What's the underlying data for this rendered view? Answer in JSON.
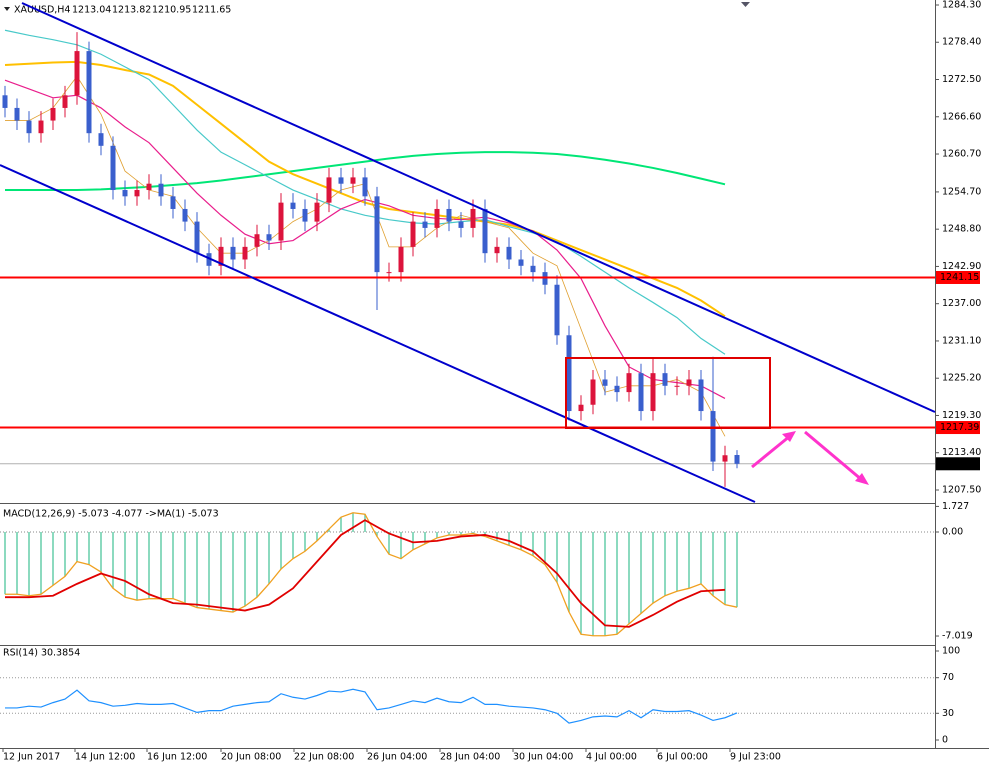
{
  "chart_data": [
    {
      "type": "candlestick",
      "title": "XAUUSD,H4",
      "open": [
        1270,
        1268,
        1266,
        1264,
        1266,
        1268,
        1270,
        1277,
        1264,
        1262,
        1255,
        1254,
        1255,
        1256,
        1254,
        1252,
        1250,
        1245,
        1243,
        1246,
        1244,
        1246,
        1248,
        1247,
        1253,
        1252,
        1250,
        1253,
        1257,
        1256,
        1257,
        1254,
        1242,
        1242,
        1246,
        1250,
        1249,
        1252,
        1250,
        1249,
        1252,
        1245,
        1246,
        1244,
        1243,
        1242,
        1240,
        1232,
        1220,
        1221,
        1225,
        1224,
        1223,
        1226,
        1220,
        1226,
        1224,
        1224,
        1225,
        1220,
        1212,
        1213.04
      ],
      "high": [
        1271.5,
        1269.5,
        1267.5,
        1267.5,
        1269.5,
        1271.5,
        1280,
        1278.5,
        1265.5,
        1263.5,
        1256.5,
        1256.5,
        1257.5,
        1257.5,
        1255.5,
        1253.5,
        1251.5,
        1246.5,
        1247.5,
        1247.5,
        1247.5,
        1249.5,
        1249.5,
        1254.5,
        1254.5,
        1253.5,
        1254.5,
        1258.5,
        1258.5,
        1258.5,
        1258.5,
        1255.5,
        1243.5,
        1247.5,
        1251.5,
        1251.5,
        1253.5,
        1253.5,
        1251.5,
        1253.5,
        1253.5,
        1247.5,
        1247.5,
        1245.5,
        1244.5,
        1243.5,
        1241.5,
        1233.5,
        1222.5,
        1226.5,
        1226.5,
        1225.5,
        1227.5,
        1227.5,
        1228.5,
        1227.5,
        1225.5,
        1226.5,
        1226.5,
        1228.6,
        1214.5,
        1213.82
      ],
      "low": [
        1266.5,
        1264.5,
        1262.5,
        1262.5,
        1264.5,
        1266.5,
        1268.5,
        1262.5,
        1260.5,
        1253.5,
        1252.5,
        1252.5,
        1253.5,
        1252.5,
        1250.5,
        1248.5,
        1243.5,
        1241.5,
        1241.5,
        1242.5,
        1242.5,
        1244.5,
        1245.5,
        1245.5,
        1250.5,
        1248.5,
        1248.5,
        1251.5,
        1254.5,
        1254.5,
        1252.5,
        1236,
        1240.5,
        1240.5,
        1244.5,
        1247.5,
        1247.5,
        1248.5,
        1247.5,
        1247.5,
        1243.5,
        1243.5,
        1242.5,
        1241.5,
        1240.5,
        1238.5,
        1230.5,
        1218.5,
        1218.5,
        1219.5,
        1222.5,
        1221.5,
        1221.5,
        1218.5,
        1218.5,
        1222.5,
        1222.5,
        1222.5,
        1218.5,
        1210.5,
        1208,
        1210.95
      ],
      "close": [
        1268,
        1266,
        1264,
        1266,
        1268,
        1270,
        1277,
        1264,
        1262,
        1255,
        1254,
        1255,
        1256,
        1254,
        1252,
        1250,
        1245,
        1243,
        1246,
        1244,
        1246,
        1248,
        1247,
        1253,
        1252,
        1250,
        1253,
        1257,
        1256,
        1257,
        1254,
        1242,
        1242,
        1246,
        1250,
        1249,
        1252,
        1250,
        1249,
        1252,
        1245,
        1246,
        1244,
        1243,
        1242,
        1240,
        1232,
        1220,
        1221,
        1225,
        1224,
        1223,
        1226,
        1220,
        1226,
        1224,
        1224,
        1225,
        1220,
        1212,
        1213,
        1211.65
      ],
      "up_color": "#dc143c",
      "down_color": "#3a5fcd",
      "series": [
        {
          "color": "#00e676",
          "width": 2,
          "values": [
            1255,
            1255,
            1255,
            1255,
            1255.1,
            1255.3,
            1255.5,
            1255.8,
            1256.1,
            1256.5,
            1257,
            1257.5,
            1258,
            1258.5,
            1259,
            1259.5,
            1260,
            1260.4,
            1260.7,
            1260.9,
            1261,
            1261,
            1260.9,
            1260.7,
            1260.3,
            1259.8,
            1259.2,
            1258.5,
            1257.7,
            1256.8,
            1255.9
          ]
        },
        {
          "color": "#ffc000",
          "width": 2,
          "values": [
            1274.8,
            1275,
            1275.2,
            1275.3,
            1274.8,
            1274,
            1273.3,
            1271.5,
            1268.5,
            1265.5,
            1262.5,
            1259.5,
            1257.5,
            1256,
            1254.5,
            1253,
            1252,
            1251.5,
            1251,
            1250.5,
            1250,
            1249.5,
            1248.5,
            1247,
            1245.5,
            1244,
            1242.5,
            1241,
            1239.5,
            1237.5,
            1235
          ]
        },
        {
          "color": "#48c9c9",
          "width": 1.2,
          "values": [
            1280.3,
            1279.5,
            1278.8,
            1278,
            1276.5,
            1274.5,
            1272.5,
            1268.5,
            1264.5,
            1261,
            1259,
            1257,
            1255,
            1253.5,
            1252,
            1251,
            1250.3,
            1249.8,
            1249.6,
            1250,
            1250.3,
            1249.2,
            1248.2,
            1246.8,
            1244.5,
            1242,
            1239.5,
            1237.2,
            1234.8,
            1231.5,
            1229
          ]
        },
        {
          "color": "#e91e8c",
          "width": 1.2,
          "values": [
            1272.4,
            1271,
            1269.6,
            1270,
            1268,
            1265,
            1262.5,
            1258.5,
            1254.5,
            1251,
            1248,
            1246.5,
            1247,
            1249.5,
            1252,
            1253.5,
            1252.5,
            1251,
            1250.5,
            1250.3,
            1250.7,
            1249.8,
            1248.5,
            1245.5,
            1241,
            1233.5,
            1227,
            1225,
            1224.5,
            1224,
            1222
          ]
        },
        {
          "color": "#e0a030",
          "width": 0.8,
          "values": [
            1266,
            1266,
            1268,
            1273,
            1267,
            1258,
            1255,
            1254,
            1249,
            1245,
            1245,
            1247,
            1250,
            1252,
            1255,
            1256,
            1246,
            1246,
            1249,
            1251,
            1250,
            1249,
            1245,
            1243,
            1233,
            1223,
            1224,
            1224,
            1225,
            1223,
            1216
          ]
        }
      ],
      "levels": [
        1241.15,
        1217.39
      ],
      "level_color": "#ff0000",
      "last_price": 1211.65,
      "ylim": [
        1205.44,
        1285.09
      ],
      "yticks": [
        {
          "value": 1284.3,
          "label": "1284.30"
        },
        {
          "value": 1278.4,
          "label": "1278.40"
        },
        {
          "value": 1272.5,
          "label": "1272.50"
        },
        {
          "value": 1266.6,
          "label": "1266.60"
        },
        {
          "value": 1260.7,
          "label": "1260.70"
        },
        {
          "value": 1254.7,
          "label": "1254.70"
        },
        {
          "value": 1248.8,
          "label": "1248.80"
        },
        {
          "value": 1242.9,
          "label": "1242.90"
        },
        {
          "value": 1237,
          "label": "1237.00"
        },
        {
          "value": 1231.1,
          "label": "1231.10"
        },
        {
          "value": 1225.2,
          "label": "1225.20"
        },
        {
          "value": 1219.3,
          "label": "1219.30"
        },
        {
          "value": 1213.4,
          "label": "1213.40"
        },
        {
          "value": 1207.5,
          "label": "1207.50"
        }
      ],
      "x_labels": [
        "12 Jun 2017",
        "14 Jun 12:00",
        "16 Jun 12:00",
        "20 Jun 08:00",
        "22 Jun 08:00",
        "26 Jun 04:00",
        "28 Jun 04:00",
        "30 Jun 04:00",
        "4 Jul 00:00",
        "6 Jul 00:00",
        "9 Jul 23:00"
      ]
    },
    {
      "type": "bar",
      "title": "MACD(12,26,9) -5.073 -4.077 ->MA(1) -5.073",
      "values": [
        -4.2,
        -4.2,
        -4.3,
        -4.2,
        -3.6,
        -3.0,
        -2.0,
        -2.2,
        -2.7,
        -3.8,
        -4.4,
        -4.6,
        -4.5,
        -4.5,
        -4.5,
        -4.8,
        -5.1,
        -5.2,
        -5.3,
        -5.4,
        -5.0,
        -4.4,
        -3.5,
        -2.5,
        -1.8,
        -1.3,
        -0.6,
        0.2,
        1.0,
        1.3,
        1.2,
        -0.3,
        -1.5,
        -1.8,
        -1.2,
        -0.8,
        -0.4,
        -0.2,
        -0.2,
        -0.1,
        -0.3,
        -0.6,
        -0.9,
        -1.2,
        -1.6,
        -2.2,
        -3.4,
        -5.4,
        -6.9,
        -7.0,
        -7.0,
        -6.9,
        -6.2,
        -5.5,
        -4.8,
        -4.3,
        -4.0,
        -3.8,
        -3.5,
        -4.3,
        -4.9,
        -5.073
      ],
      "color": "#66cdaa",
      "line_color": "#f0a020",
      "series": [
        {
          "color": "#e00000",
          "values": [
            -4.4,
            -4.4,
            -4.3,
            -3.5,
            -2.8,
            -3.3,
            -4.2,
            -4.8,
            -4.9,
            -5.1,
            -5.3,
            -4.9,
            -3.8,
            -2.0,
            -0.2,
            0.8,
            -0.1,
            -0.7,
            -0.6,
            -0.3,
            -0.2,
            -0.6,
            -1.3,
            -2.8,
            -4.8,
            -6.3,
            -6.4,
            -5.6,
            -4.7,
            -4.0,
            -3.9
          ]
        }
      ],
      "ylim": [
        -7.625,
        1.822
      ],
      "yticks": [
        1.727,
        {
          "value": 0,
          "label": "0.00"
        },
        -7.019
      ]
    },
    {
      "type": "line",
      "title": "RSI(14) 30.3854",
      "values": [
        36,
        36,
        38,
        37,
        42,
        46,
        56,
        44,
        42,
        38,
        39,
        41,
        40,
        40,
        41,
        36,
        31,
        33,
        33,
        38,
        40,
        42,
        43,
        52,
        48,
        46,
        50,
        55,
        54,
        57,
        54,
        34,
        36,
        40,
        44,
        42,
        47,
        43,
        42,
        48,
        40,
        40,
        38,
        37,
        36,
        34,
        30,
        19,
        22,
        26,
        27,
        26,
        33,
        25,
        34,
        32,
        32,
        33,
        28,
        22,
        25,
        30.3854
      ],
      "color": "#1e90ff",
      "levels": [
        70,
        30
      ],
      "ylim": [
        -9,
        104.5
      ],
      "yticks": [
        100,
        70,
        30,
        0
      ]
    }
  ]
}
